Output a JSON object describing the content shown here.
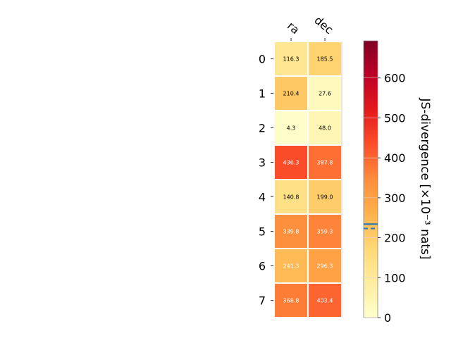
{
  "chart_data": {
    "type": "heatmap",
    "columns": [
      "ra",
      "dec"
    ],
    "rows": [
      "0",
      "1",
      "2",
      "3",
      "4",
      "5",
      "6",
      "7"
    ],
    "values": [
      [
        116.3,
        185.5
      ],
      [
        210.4,
        27.6
      ],
      [
        4.3,
        48.0
      ],
      [
        436.3,
        387.8
      ],
      [
        140.8,
        199.0
      ],
      [
        339.8,
        359.3
      ],
      [
        241.3,
        296.3
      ],
      [
        368.8,
        403.4
      ]
    ],
    "cell_labels": [
      [
        "116.3",
        "185.5"
      ],
      [
        "210.4",
        "27.6"
      ],
      [
        "4.3",
        "48.0"
      ],
      [
        "436.3",
        "387.8"
      ],
      [
        "140.8",
        "199.0"
      ],
      [
        "339.8",
        "359.3"
      ],
      [
        "241.3",
        "296.3"
      ],
      [
        "368.8",
        "403.4"
      ]
    ],
    "colormap": "YlOrRd",
    "colorbar": {
      "label": "JS-divergence [×10⁻³ nats]",
      "range": [
        0,
        693
      ],
      "ticks": [
        0,
        100,
        200,
        300,
        400,
        500,
        600
      ],
      "tick_labels": [
        "0",
        "100",
        "200",
        "300",
        "400",
        "500",
        "600"
      ],
      "reference_lines": [
        {
          "value": 234,
          "style": "solid",
          "color": "#1f77b4"
        },
        {
          "value": 223,
          "style": "dashed",
          "color": "#1f77b4"
        }
      ]
    },
    "grid": false,
    "legend": "none"
  }
}
